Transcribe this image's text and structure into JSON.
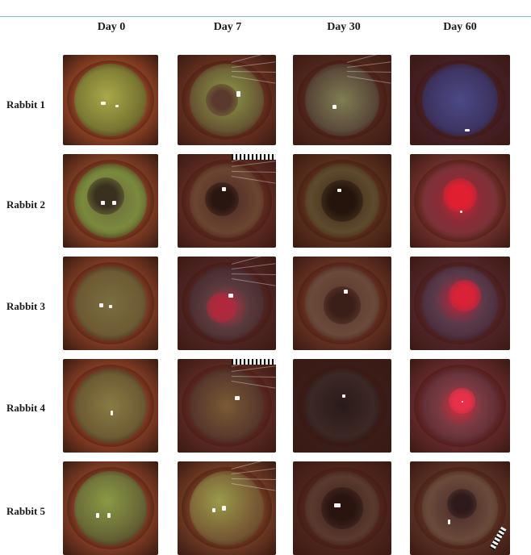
{
  "columns": [
    "Day 0",
    "Day 7",
    "Day 30",
    "Day 60"
  ],
  "rows": [
    "Rabbit 1",
    "Rabbit 2",
    "Rabbit 3",
    "Rabbit 4",
    "Rabbit 5"
  ]
}
